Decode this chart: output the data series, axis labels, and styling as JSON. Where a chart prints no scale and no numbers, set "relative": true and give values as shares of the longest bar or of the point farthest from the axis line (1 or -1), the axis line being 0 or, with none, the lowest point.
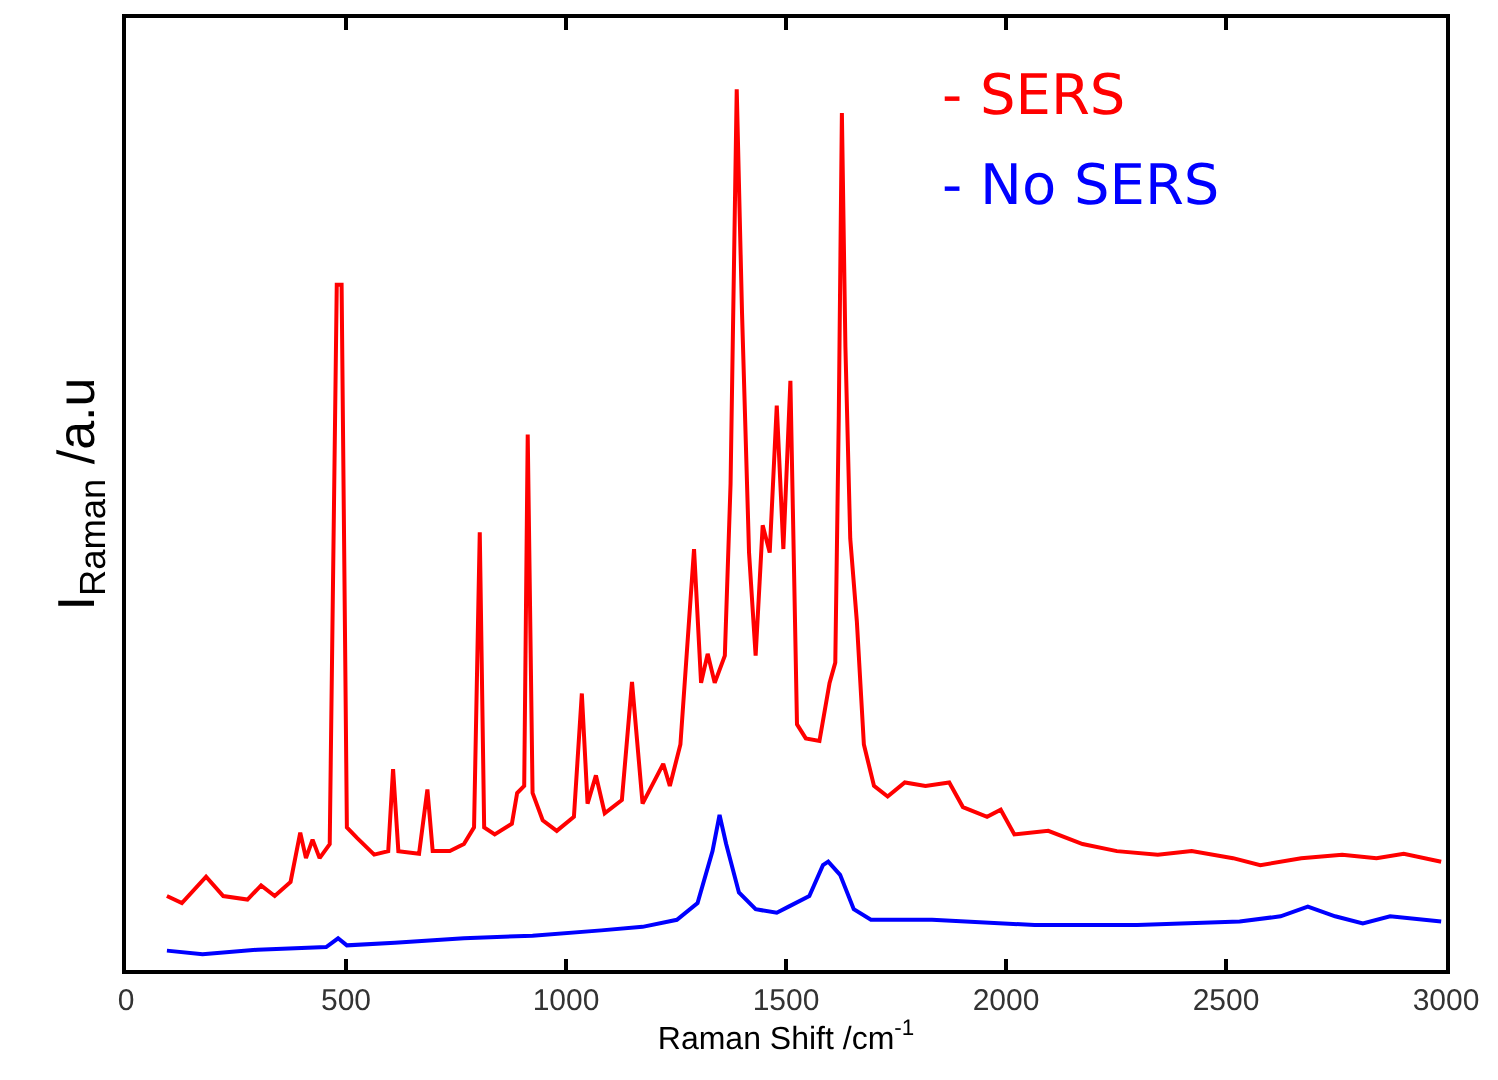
{
  "chart_data": {
    "type": "line",
    "xlabel": "Raman Shift /cm$^{-1}$",
    "ylabel": "I$_{Raman}$ /a.u",
    "relative": true,
    "xlim": [
      0,
      3000
    ],
    "xticks": [
      0,
      500,
      1000,
      1500,
      2000,
      2500,
      3000
    ],
    "grid": false,
    "marker": "none",
    "line_style": "solid",
    "series": [
      {
        "name": "- SERS",
        "color": "#ff0000",
        "x": [
          93,
          127,
          182,
          221,
          276,
          307,
          338,
          374,
          396,
          409,
          424,
          440,
          463,
          479,
          490,
          502,
          525,
          564,
          596,
          607,
          619,
          666,
          685,
          697,
          736,
          768,
          791,
          804,
          814,
          838,
          877,
          889,
          905,
          913,
          924,
          947,
          979,
          1018,
          1036,
          1049,
          1068,
          1088,
          1127,
          1150,
          1174,
          1221,
          1236,
          1260,
          1291,
          1307,
          1322,
          1338,
          1361,
          1374,
          1388,
          1400,
          1416,
          1431,
          1447,
          1463,
          1479,
          1494,
          1510,
          1525,
          1545,
          1576,
          1599,
          1612,
          1620,
          1627,
          1635,
          1646,
          1661,
          1677,
          1700,
          1731,
          1770,
          1817,
          1871,
          1902,
          1957,
          1988,
          2019,
          2096,
          2174,
          2252,
          2345,
          2422,
          2516,
          2578,
          2671,
          2764,
          2842,
          2904,
          2989
        ],
        "values": [
          0.084,
          0.076,
          0.106,
          0.084,
          0.08,
          0.096,
          0.084,
          0.1,
          0.156,
          0.127,
          0.148,
          0.127,
          0.143,
          0.778,
          0.778,
          0.162,
          0.15,
          0.131,
          0.135,
          0.228,
          0.135,
          0.132,
          0.205,
          0.135,
          0.135,
          0.143,
          0.162,
          0.497,
          0.162,
          0.154,
          0.166,
          0.201,
          0.209,
          0.608,
          0.201,
          0.17,
          0.158,
          0.174,
          0.314,
          0.189,
          0.221,
          0.178,
          0.193,
          0.327,
          0.189,
          0.234,
          0.209,
          0.256,
          0.478,
          0.326,
          0.359,
          0.326,
          0.357,
          0.552,
          1.0,
          0.747,
          0.474,
          0.357,
          0.505,
          0.474,
          0.641,
          0.478,
          0.669,
          0.279,
          0.263,
          0.26,
          0.326,
          0.349,
          0.63,
          0.973,
          0.708,
          0.49,
          0.396,
          0.256,
          0.209,
          0.197,
          0.213,
          0.209,
          0.213,
          0.185,
          0.174,
          0.182,
          0.154,
          0.158,
          0.143,
          0.135,
          0.131,
          0.135,
          0.127,
          0.119,
          0.127,
          0.131,
          0.127,
          0.132,
          0.123
        ]
      },
      {
        "name": "- No SERS",
        "color": "#0000ff",
        "x": [
          93,
          174,
          299,
          455,
          482,
          502,
          611,
          768,
          924,
          1080,
          1174,
          1252,
          1299,
          1333,
          1349,
          1364,
          1393,
          1431,
          1479,
          1506,
          1553,
          1584,
          1596,
          1623,
          1654,
          1693,
          1832,
          2065,
          2298,
          2531,
          2624,
          2686,
          2748,
          2811,
          2873,
          2989
        ],
        "values": [
          0.022,
          0.018,
          0.023,
          0.026,
          0.036,
          0.028,
          0.031,
          0.036,
          0.039,
          0.045,
          0.049,
          0.057,
          0.076,
          0.135,
          0.176,
          0.143,
          0.088,
          0.069,
          0.065,
          0.072,
          0.084,
          0.119,
          0.123,
          0.108,
          0.069,
          0.057,
          0.057,
          0.051,
          0.051,
          0.055,
          0.061,
          0.072,
          0.061,
          0.053,
          0.061,
          0.055
        ]
      }
    ]
  }
}
